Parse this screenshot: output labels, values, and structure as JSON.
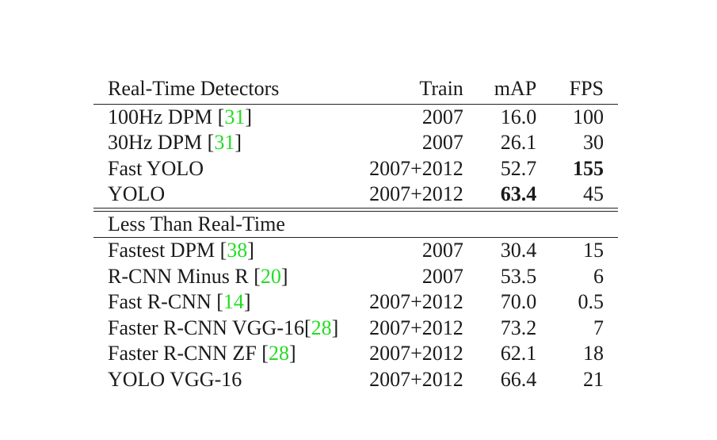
{
  "table": {
    "headers": {
      "name": "Real-Time Detectors",
      "train": "Train",
      "map": "mAP",
      "fps": "FPS"
    },
    "realtime_rows": [
      {
        "name": "100Hz DPM ",
        "ref": "31",
        "train": "2007",
        "map": "16.0",
        "fps": "100"
      },
      {
        "name": "30Hz DPM ",
        "ref": "31",
        "train": "2007",
        "map": "26.1",
        "fps": "30"
      },
      {
        "name": "Fast YOLO",
        "ref": "",
        "train": "2007+2012",
        "map": "52.7",
        "fps": "155"
      },
      {
        "name": "YOLO",
        "ref": "",
        "train": "2007+2012",
        "map": "63.4",
        "fps": "45"
      }
    ],
    "group_label": "Less Than Real-Time",
    "nonrealtime_rows": [
      {
        "name": "Fastest DPM ",
        "ref": "38",
        "train": "2007",
        "map": "30.4",
        "fps": "15"
      },
      {
        "name": "R-CNN Minus R ",
        "ref": "20",
        "train": "2007",
        "map": "53.5",
        "fps": "6"
      },
      {
        "name": "Fast R-CNN ",
        "ref": "14",
        "train": "2007+2012",
        "map": "70.0",
        "fps": "0.5"
      },
      {
        "name": "Faster R-CNN VGG-16",
        "ref": "28",
        "train": "2007+2012",
        "map": "73.2",
        "fps": "7"
      },
      {
        "name": "Faster R-CNN ZF ",
        "ref": "28",
        "train": "2007+2012",
        "map": "62.1",
        "fps": "18"
      },
      {
        "name": "YOLO VGG-16",
        "ref": "",
        "train": "2007+2012",
        "map": "66.4",
        "fps": "21"
      }
    ],
    "ref_color": "#22dd22"
  }
}
